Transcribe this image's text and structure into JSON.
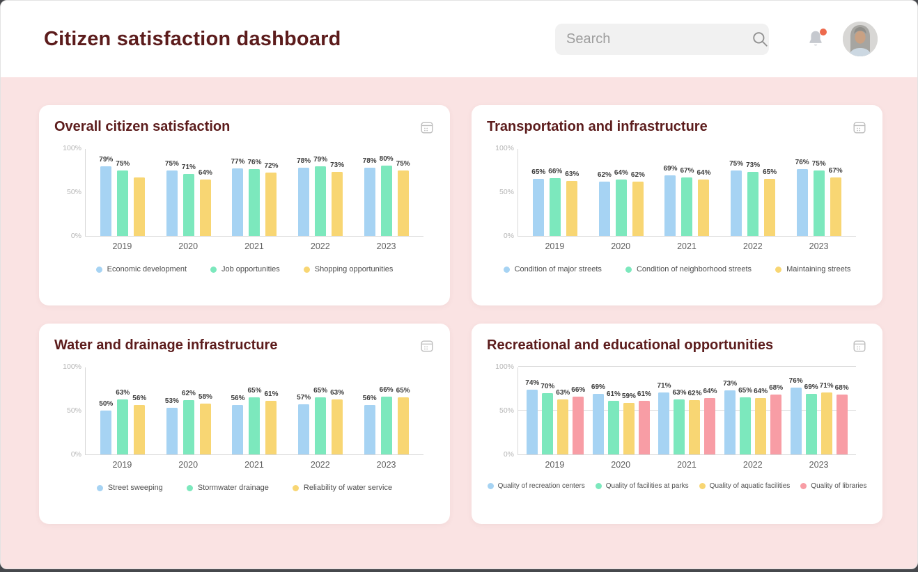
{
  "header": {
    "title": "Citizen satisfaction dashboard",
    "search_placeholder": "Search",
    "notification_has_badge": true
  },
  "icons": {
    "search": "magnifier-icon",
    "notifications": "bell-icon",
    "notification_badge": "red-dot",
    "card_action": "calendar-icon",
    "avatar": "user-photo"
  },
  "colors": {
    "title_maroon": "#5c1c1c",
    "page_background": "#fae3e3",
    "card_background": "#ffffff",
    "series_blue": "#a6d3f3",
    "series_green": "#7ce8bd",
    "series_yellow": "#f8d673",
    "series_pink": "#f89da5",
    "notification_badge": "#ed6a4d"
  },
  "chart_data": [
    {
      "type": "bar",
      "title": "Overall citizen satisfaction",
      "categories": [
        "2019",
        "2020",
        "2021",
        "2022",
        "2023"
      ],
      "series": [
        {
          "name": "Economic development",
          "color": "#a6d3f3",
          "values": [
            79,
            75,
            77,
            78,
            78
          ],
          "labels": [
            "79%",
            "75%",
            "77%",
            "78%",
            "78%"
          ]
        },
        {
          "name": "Job opportunities",
          "color": "#7ce8bd",
          "values": [
            75,
            71,
            76,
            79,
            80
          ],
          "labels": [
            "75%",
            "71%",
            "76%",
            "79%",
            "80%"
          ]
        },
        {
          "name": "Shopping opportunities",
          "color": "#f8d673",
          "values": [
            67,
            64,
            72,
            73,
            75
          ],
          "labels": [
            "",
            "64%",
            "72%",
            "73%",
            "75%"
          ]
        }
      ],
      "ylim": [
        0,
        100
      ],
      "yticks": [
        {
          "value": 100,
          "label": "100%"
        },
        {
          "value": 50,
          "label": "50%"
        },
        {
          "value": 0,
          "label": "0%"
        }
      ],
      "grid": false,
      "legend_position": "bottom"
    },
    {
      "type": "bar",
      "title": "Transportation and infrastructure",
      "categories": [
        "2019",
        "2020",
        "2021",
        "2022",
        "2023"
      ],
      "series": [
        {
          "name": "Condition of major streets",
          "color": "#a6d3f3",
          "values": [
            65,
            62,
            69,
            75,
            76
          ],
          "labels": [
            "65%",
            "62%",
            "69%",
            "75%",
            "76%"
          ]
        },
        {
          "name": "Condition of neighborhood streets",
          "color": "#7ce8bd",
          "values": [
            66,
            64,
            67,
            73,
            75
          ],
          "labels": [
            "66%",
            "64%",
            "67%",
            "73%",
            "75%"
          ]
        },
        {
          "name": "Maintaining streets",
          "color": "#f8d673",
          "values": [
            63,
            62,
            64,
            65,
            67
          ],
          "labels": [
            "63%",
            "62%",
            "64%",
            "65%",
            "67%"
          ]
        }
      ],
      "ylim": [
        0,
        100
      ],
      "yticks": [
        {
          "value": 100,
          "label": "100%"
        },
        {
          "value": 50,
          "label": "50%"
        },
        {
          "value": 0,
          "label": "0%"
        }
      ],
      "grid": false,
      "legend_position": "bottom"
    },
    {
      "type": "bar",
      "title": "Water and drainage infrastructure",
      "categories": [
        "2019",
        "2020",
        "2021",
        "2022",
        "2023"
      ],
      "series": [
        {
          "name": "Street sweeping",
          "color": "#a6d3f3",
          "values": [
            50,
            53,
            56,
            57,
            56
          ],
          "labels": [
            "50%",
            "53%",
            "56%",
            "57%",
            "56%"
          ]
        },
        {
          "name": "Stormwater drainage",
          "color": "#7ce8bd",
          "values": [
            63,
            62,
            65,
            65,
            66
          ],
          "labels": [
            "63%",
            "62%",
            "65%",
            "65%",
            "66%"
          ]
        },
        {
          "name": "Reliability of water service",
          "color": "#f8d673",
          "values": [
            56,
            58,
            61,
            63,
            65
          ],
          "labels": [
            "56%",
            "58%",
            "61%",
            "63%",
            "65%"
          ]
        }
      ],
      "ylim": [
        0,
        100
      ],
      "yticks": [
        {
          "value": 100,
          "label": "100%"
        },
        {
          "value": 50,
          "label": "50%"
        },
        {
          "value": 0,
          "label": "0%"
        }
      ],
      "grid": false,
      "legend_position": "bottom"
    },
    {
      "type": "bar",
      "title": "Recreational and educational opportunities",
      "categories": [
        "2019",
        "2020",
        "2021",
        "2022",
        "2023"
      ],
      "series": [
        {
          "name": "Quality of recreation centers",
          "color": "#a6d3f3",
          "values": [
            74,
            69,
            71,
            73,
            76
          ],
          "labels": [
            "74%",
            "69%",
            "71%",
            "73%",
            "76%"
          ]
        },
        {
          "name": "Quality of facilities at parks",
          "color": "#7ce8bd",
          "values": [
            70,
            61,
            63,
            65,
            69
          ],
          "labels": [
            "70%",
            "61%",
            "63%",
            "65%",
            "69%"
          ]
        },
        {
          "name": "Quality of aquatic facilities",
          "color": "#f8d673",
          "values": [
            63,
            59,
            62,
            64,
            71
          ],
          "labels": [
            "63%",
            "59%",
            "62%",
            "64%",
            "71%"
          ]
        },
        {
          "name": "Quality of libraries",
          "color": "#f89da5",
          "values": [
            66,
            61,
            64,
            68,
            68
          ],
          "labels": [
            "66%",
            "61%",
            "64%",
            "68%",
            "68%"
          ]
        }
      ],
      "ylim": [
        0,
        100
      ],
      "yticks": [
        {
          "value": 100,
          "label": "100%"
        },
        {
          "value": 50,
          "label": "50%"
        },
        {
          "value": 0,
          "label": "0%"
        }
      ],
      "grid": true,
      "legend_position": "bottom"
    }
  ]
}
